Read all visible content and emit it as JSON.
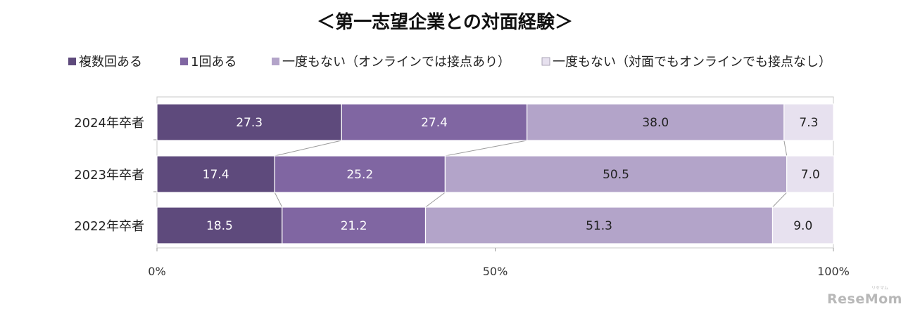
{
  "chart_data": {
    "type": "bar",
    "orientation": "horizontal",
    "stacked": true,
    "title": "＜第一志望企業との対面経験＞",
    "categories": [
      "2024年卒者",
      "2023年卒者",
      "2022年卒者"
    ],
    "series": [
      {
        "name": "複数回ある",
        "color": "#5e4a7c",
        "values": [
          27.3,
          17.4,
          18.5
        ]
      },
      {
        "name": "1回ある",
        "color": "#8066a2",
        "values": [
          27.4,
          25.2,
          21.2
        ]
      },
      {
        "name": "一度もない（オンラインでは接点あり）",
        "color": "#b3a4c9",
        "values": [
          38.0,
          50.5,
          51.3
        ]
      },
      {
        "name": "一度もない（対面でもオンラインでも接点なし）",
        "color": "#e7e1ef",
        "values": [
          7.3,
          7.0,
          9.0
        ]
      }
    ],
    "x_ticks": [
      "0%",
      "50%",
      "100%"
    ],
    "xlim": [
      0,
      100
    ],
    "legend_position": "top",
    "series_lines": true,
    "grid": false
  },
  "brand": {
    "text": "ReseMom",
    "small": "リセマム"
  }
}
